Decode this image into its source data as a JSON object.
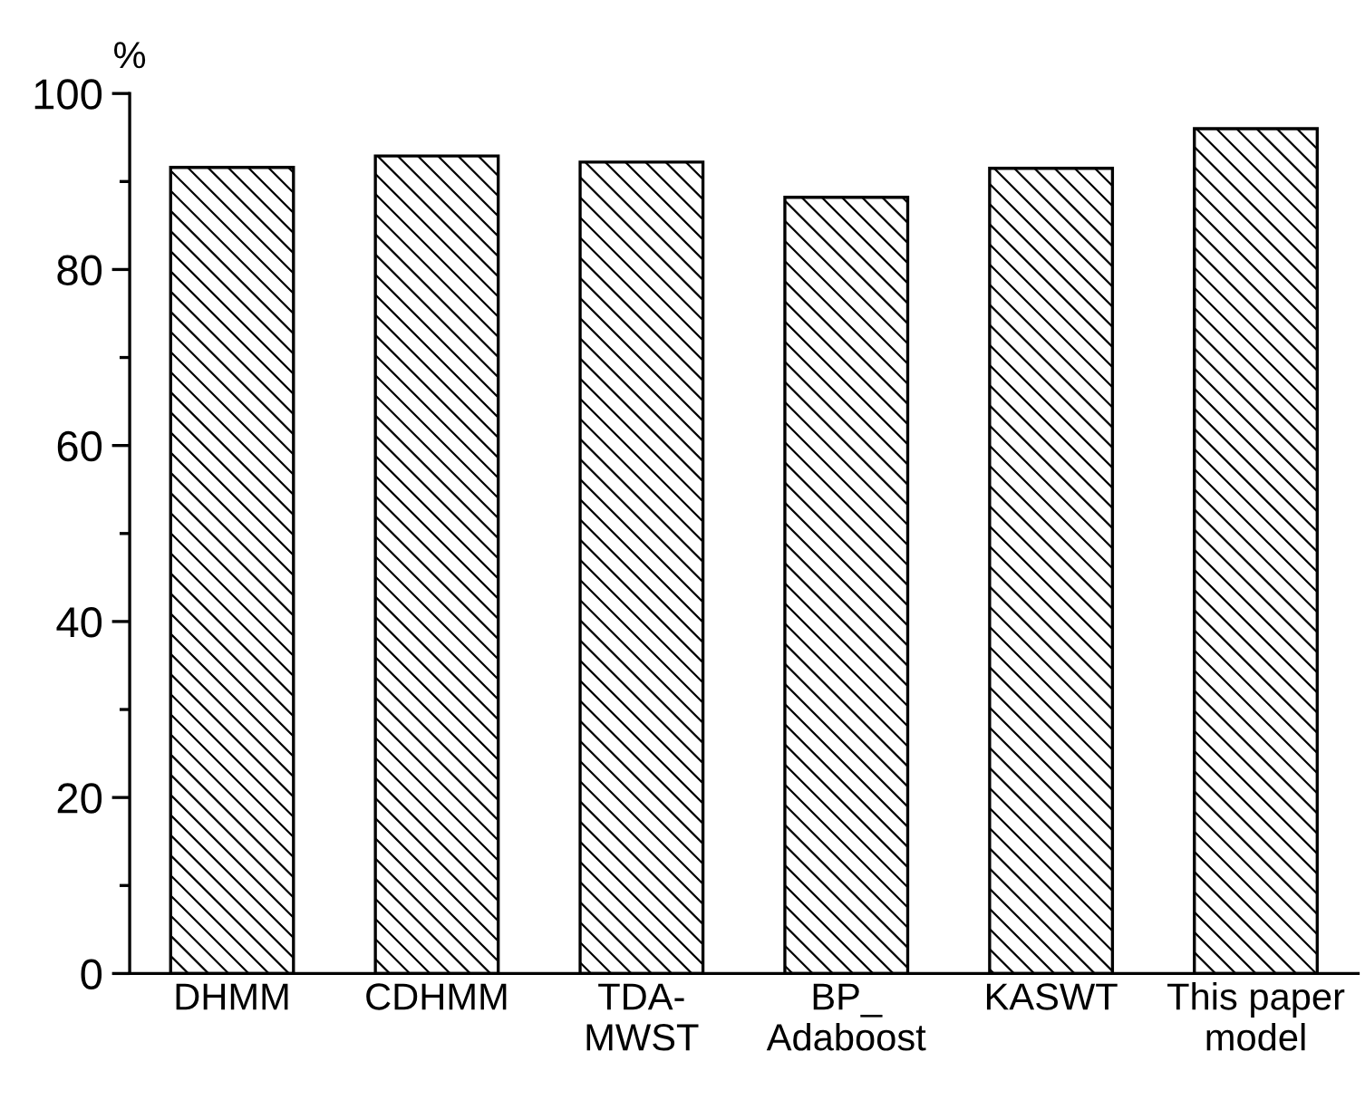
{
  "chart_data": {
    "type": "bar",
    "ylabel": "%",
    "categories": [
      "DHMM",
      "CDHMM",
      "TDA-\nMWST",
      "BP_\nAdaboost",
      "KASWT",
      "This paper\nmodel"
    ],
    "values": [
      91.6,
      92.9,
      92.2,
      88.2,
      91.5,
      96.0
    ],
    "color": "#000000",
    "ylim": [
      0,
      100
    ],
    "yticks": [
      0,
      20,
      40,
      60,
      80,
      100
    ],
    "grid": false,
    "legend": false
  }
}
